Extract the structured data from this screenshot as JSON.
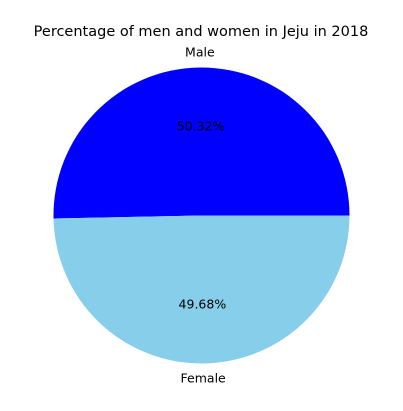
{
  "chart_data": {
    "type": "pie",
    "title": "Percentage of men and women in Jeju in 2018",
    "categories": [
      "Male",
      "Female"
    ],
    "values": [
      50.32,
      49.68
    ],
    "value_labels": [
      "50.32%",
      "49.68%"
    ],
    "colors": [
      "#0000ff",
      "#87ceeb"
    ],
    "start_angle_deg": 0,
    "direction": "counterclockwise"
  }
}
